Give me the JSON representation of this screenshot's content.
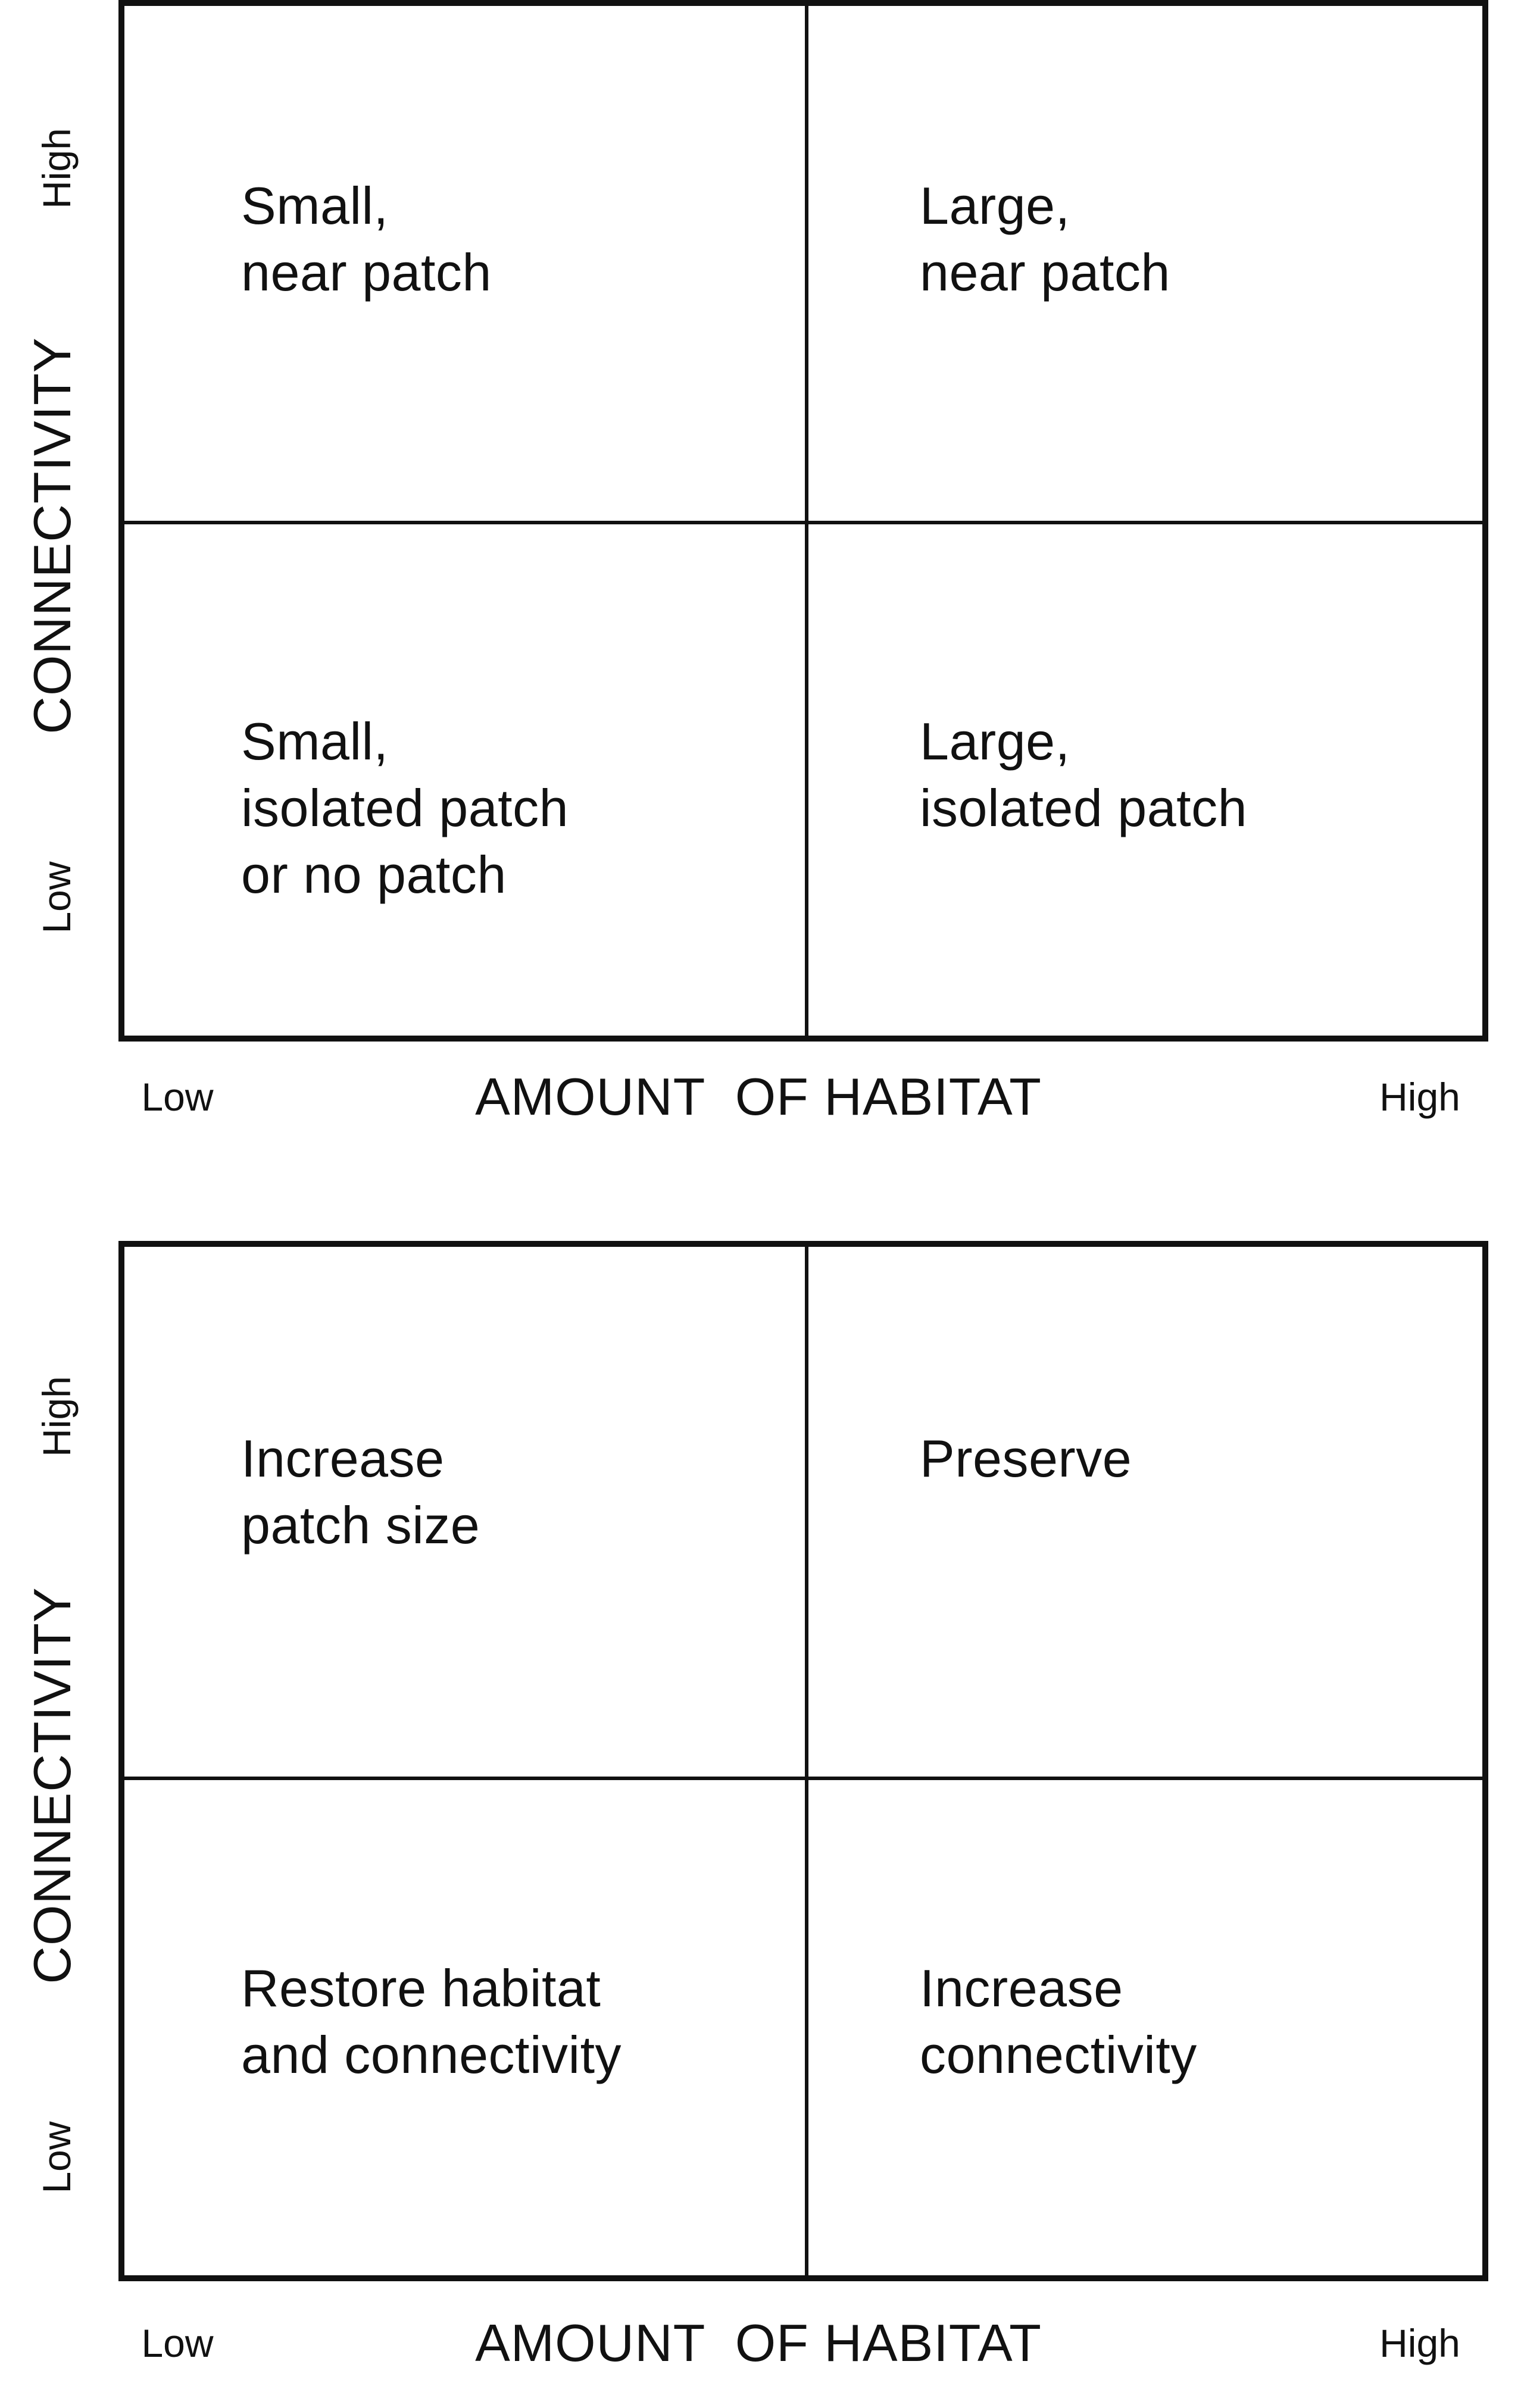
{
  "figure": {
    "background_color": "#ffffff",
    "line_color": "#111111",
    "text_color": "#111111"
  },
  "charts": [
    {
      "id": "patch-condition-matrix",
      "x_axis": {
        "title": "AMOUNT  OF HABITAT",
        "low_label": "Low",
        "high_label": "High"
      },
      "y_axis": {
        "title": "CONNECTIVITY",
        "low_label": "Low",
        "high_label": "High"
      },
      "quadrants": {
        "top_left": "Small,\nnear patch",
        "top_right": "Large,\nnear patch",
        "bottom_left": "Small,\nisolated patch\nor no patch",
        "bottom_right": "Large,\nisolated patch"
      }
    },
    {
      "id": "management-action-matrix",
      "x_axis": {
        "title": "AMOUNT  OF HABITAT",
        "low_label": "Low",
        "high_label": "High"
      },
      "y_axis": {
        "title": "CONNECTIVITY",
        "low_label": "Low",
        "high_label": "High"
      },
      "quadrants": {
        "top_left": "Increase\npatch size",
        "top_right": "Preserve",
        "bottom_left": "Restore habitat\nand connectivity",
        "bottom_right": "Increase\nconnectivity"
      }
    }
  ],
  "chart_data": [
    {
      "type": "table",
      "title": "Patch condition by habitat amount and connectivity",
      "xlabel": "AMOUNT OF HABITAT",
      "ylabel": "CONNECTIVITY",
      "x_levels": [
        "Low",
        "High"
      ],
      "y_levels": [
        "Low",
        "High"
      ],
      "cells": [
        {
          "x": "Low",
          "y": "High",
          "value": "Small, near patch"
        },
        {
          "x": "High",
          "y": "High",
          "value": "Large, near patch"
        },
        {
          "x": "Low",
          "y": "Low",
          "value": "Small, isolated patch or no patch"
        },
        {
          "x": "High",
          "y": "Low",
          "value": "Large, isolated patch"
        }
      ]
    },
    {
      "type": "table",
      "title": "Recommended action by habitat amount and connectivity",
      "xlabel": "AMOUNT OF HABITAT",
      "ylabel": "CONNECTIVITY",
      "x_levels": [
        "Low",
        "High"
      ],
      "y_levels": [
        "Low",
        "High"
      ],
      "cells": [
        {
          "x": "Low",
          "y": "High",
          "value": "Increase patch size"
        },
        {
          "x": "High",
          "y": "High",
          "value": "Preserve"
        },
        {
          "x": "Low",
          "y": "Low",
          "value": "Restore habitat and connectivity"
        },
        {
          "x": "High",
          "y": "Low",
          "value": "Increase connectivity"
        }
      ]
    }
  ]
}
